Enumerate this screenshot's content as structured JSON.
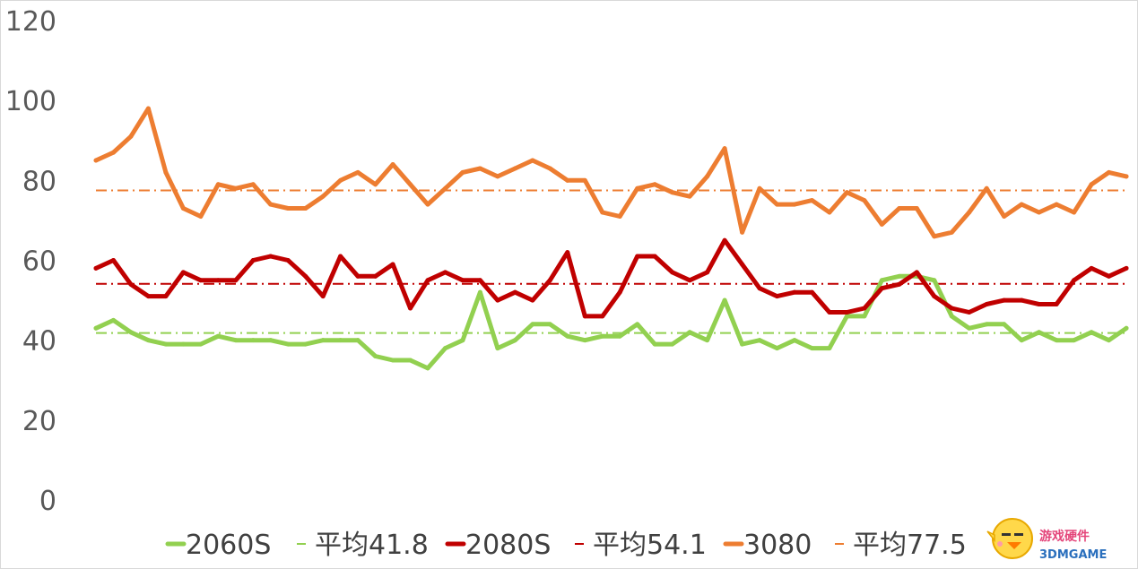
{
  "chart_data": {
    "type": "line",
    "title": "",
    "xlabel": "",
    "ylabel": "",
    "ylim": [
      0,
      120
    ],
    "yticks": [
      0,
      20,
      40,
      60,
      80,
      100,
      120
    ],
    "grid": false,
    "legend_position": "bottom",
    "series": [
      {
        "name": "2060S",
        "color": "#92d050",
        "style": "solid",
        "values": [
          43,
          45,
          42,
          40,
          39,
          39,
          39,
          41,
          40,
          40,
          40,
          39,
          39,
          40,
          40,
          40,
          36,
          35,
          35,
          33,
          38,
          40,
          52,
          38,
          40,
          44,
          44,
          41,
          40,
          41,
          41,
          44,
          39,
          39,
          42,
          40,
          50,
          39,
          40,
          38,
          40,
          38,
          38,
          46,
          46,
          55,
          56,
          56,
          55,
          46,
          43,
          44,
          44,
          40,
          42,
          40,
          40,
          42,
          40,
          43
        ]
      },
      {
        "name": "平均41.8",
        "color": "#92d050",
        "style": "dashdot",
        "value": 41.8
      },
      {
        "name": "2080S",
        "color": "#c00000",
        "style": "solid",
        "values": [
          58,
          60,
          54,
          51,
          51,
          57,
          55,
          55,
          55,
          60,
          61,
          60,
          56,
          51,
          61,
          56,
          56,
          59,
          48,
          55,
          57,
          55,
          55,
          50,
          52,
          50,
          55,
          62,
          46,
          46,
          52,
          61,
          61,
          57,
          55,
          57,
          65,
          59,
          53,
          51,
          52,
          52,
          47,
          47,
          48,
          53,
          54,
          57,
          51,
          48,
          47,
          49,
          50,
          50,
          49,
          49,
          55,
          58,
          56,
          58
        ]
      },
      {
        "name": "平均54.1",
        "color": "#c00000",
        "style": "dashdot",
        "value": 54.1
      },
      {
        "name": "3080",
        "color": "#ed7d31",
        "style": "solid",
        "values": [
          85,
          87,
          91,
          98,
          82,
          73,
          71,
          79,
          78,
          79,
          74,
          73,
          73,
          76,
          80,
          82,
          79,
          84,
          79,
          74,
          78,
          82,
          83,
          81,
          83,
          85,
          83,
          80,
          80,
          72,
          71,
          78,
          79,
          77,
          76,
          81,
          88,
          67,
          78,
          74,
          74,
          75,
          72,
          77,
          75,
          69,
          73,
          73,
          66,
          67,
          72,
          78,
          71,
          74,
          72,
          74,
          72,
          79,
          82,
          81
        ]
      },
      {
        "name": "平均77.5",
        "color": "#ed7d31",
        "style": "dashdot",
        "value": 77.5
      }
    ]
  },
  "watermark": {
    "cn": "游戏硬件",
    "en": "3DMGAME"
  }
}
